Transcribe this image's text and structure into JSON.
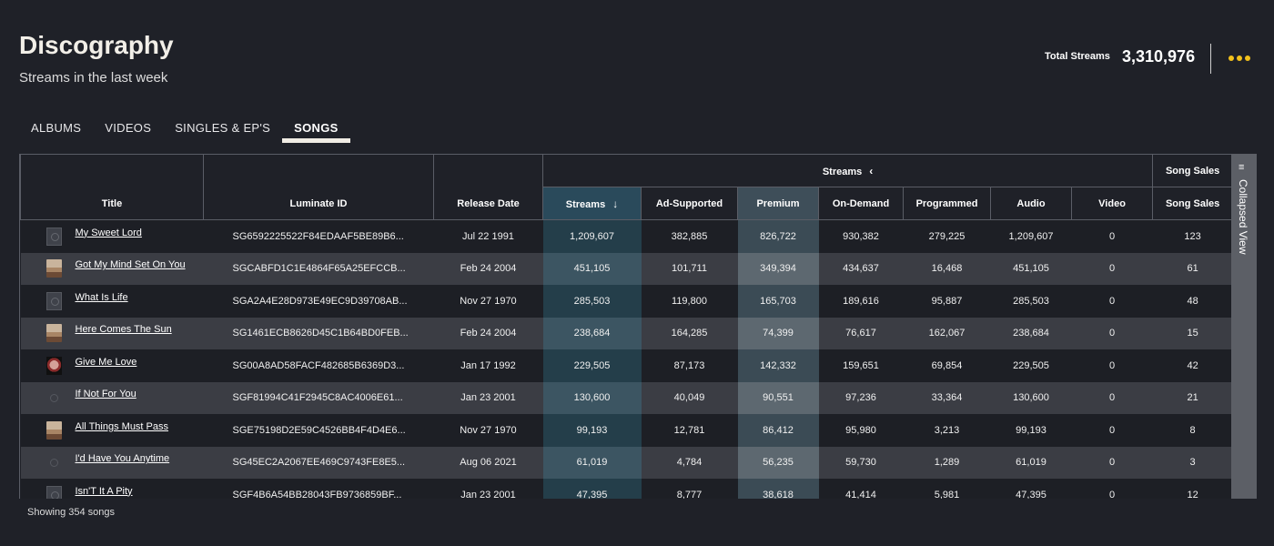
{
  "header": {
    "title": "Discography",
    "subtitle": "Streams in the last week",
    "total_label": "Total Streams",
    "total_value": "3,310,976",
    "more_icon": "ellipsis-icon",
    "accent": "#f2c11b"
  },
  "tabs": [
    {
      "label": "ALBUMS",
      "active": false
    },
    {
      "label": "VIDEOS",
      "active": false
    },
    {
      "label": "SINGLES & EP'S",
      "active": false
    },
    {
      "label": "SONGS",
      "active": true
    }
  ],
  "table": {
    "group_streams": "Streams",
    "group_sales": "Song Sales",
    "columns": [
      "Title",
      "Luminate ID",
      "Release Date",
      "Streams",
      "Ad-Supported",
      "Premium",
      "On-Demand",
      "Programmed",
      "Audio",
      "Video",
      "Song Sales"
    ],
    "sort_icon": "arrow-down-icon",
    "collapse_icon": "chevron-left-icon",
    "rows": [
      {
        "title": "My Sweet Lord",
        "thumb": "gray",
        "id": "SG6592225522F84EDAAF5BE89B6...",
        "date": "Jul 22 1991",
        "streams": "1,209,607",
        "ad": "382,885",
        "premium": "826,722",
        "ondemand": "930,382",
        "programmed": "279,225",
        "audio": "1,209,607",
        "video": "0",
        "sales": "123"
      },
      {
        "title": "Got My Mind Set On You",
        "thumb": "face",
        "id": "SGCABFD1C1E4864F65A25EFCCB...",
        "date": "Feb 24 2004",
        "streams": "451,105",
        "ad": "101,711",
        "premium": "349,394",
        "ondemand": "434,637",
        "programmed": "16,468",
        "audio": "451,105",
        "video": "0",
        "sales": "61"
      },
      {
        "title": "What Is Life",
        "thumb": "gray",
        "id": "SGA2A4E28D973E49EC9D39708AB...",
        "date": "Nov 27 1970",
        "streams": "285,503",
        "ad": "119,800",
        "premium": "165,703",
        "ondemand": "189,616",
        "programmed": "95,887",
        "audio": "285,503",
        "video": "0",
        "sales": "48"
      },
      {
        "title": "Here Comes The Sun",
        "thumb": "face",
        "id": "SG1461ECB8626D45C1B64BD0FEB...",
        "date": "Feb 24 2004",
        "streams": "238,684",
        "ad": "164,285",
        "premium": "74,399",
        "ondemand": "76,617",
        "programmed": "162,067",
        "audio": "238,684",
        "video": "0",
        "sales": "15"
      },
      {
        "title": "Give Me Love",
        "thumb": "hand",
        "id": "SG00A8AD58FACF482685B6369D3...",
        "date": "Jan 17 1992",
        "streams": "229,505",
        "ad": "87,173",
        "premium": "142,332",
        "ondemand": "159,651",
        "programmed": "69,854",
        "audio": "229,505",
        "video": "0",
        "sales": "42"
      },
      {
        "title": "If Not For You",
        "thumb": "dot",
        "id": "SGF81994C41F2945C8AC4006E61...",
        "date": "Jan 23 2001",
        "streams": "130,600",
        "ad": "40,049",
        "premium": "90,551",
        "ondemand": "97,236",
        "programmed": "33,364",
        "audio": "130,600",
        "video": "0",
        "sales": "21"
      },
      {
        "title": "All Things Must Pass",
        "thumb": "face",
        "id": "SGE75198D2E59C4526BB4F4D4E6...",
        "date": "Nov 27 1970",
        "streams": "99,193",
        "ad": "12,781",
        "premium": "86,412",
        "ondemand": "95,980",
        "programmed": "3,213",
        "audio": "99,193",
        "video": "0",
        "sales": "8"
      },
      {
        "title": "I'd Have You Anytime",
        "thumb": "dot",
        "id": "SG45EC2A2067EE469C9743FE8E5...",
        "date": "Aug 06 2021",
        "streams": "61,019",
        "ad": "4,784",
        "premium": "56,235",
        "ondemand": "59,730",
        "programmed": "1,289",
        "audio": "61,019",
        "video": "0",
        "sales": "3"
      },
      {
        "title": "Isn'T It A Pity",
        "thumb": "gray",
        "id": "SGF4B6A54BB28043FB9736859BF...",
        "date": "Jan 23 2001",
        "streams": "47,395",
        "ad": "8,777",
        "premium": "38,618",
        "ondemand": "41,414",
        "programmed": "5,981",
        "audio": "47,395",
        "video": "0",
        "sales": "12"
      }
    ]
  },
  "side_panel": {
    "label": "Collapsed View",
    "icon": "filter-list-icon"
  },
  "footer": {
    "count_text": "Showing 354 songs"
  }
}
